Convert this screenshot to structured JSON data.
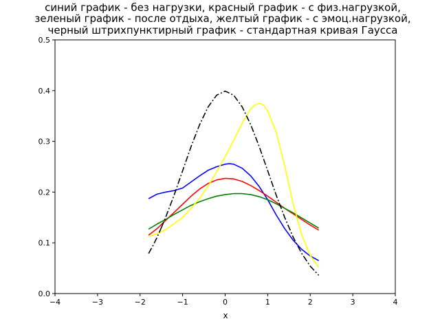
{
  "chart_data": {
    "type": "line",
    "title_lines": [
      "синий график - без нагрузки, красный график - с физ.нагрузкой,",
      "зеленый график - после отдыха, желтый график - с эмоц.нагрузкой,",
      "черный штрихпунктирный график - стандартная кривая Гаусса"
    ],
    "xlabel": "x",
    "ylabel": "",
    "xlim": [
      -4,
      4
    ],
    "ylim": [
      0,
      0.5
    ],
    "xticks": [
      -4,
      -3,
      -2,
      -1,
      0,
      1,
      2,
      3,
      4
    ],
    "yticks": [
      0.0,
      0.1,
      0.2,
      0.3,
      0.4,
      0.5
    ],
    "xtick_labels": [
      "−4",
      "−3",
      "−2",
      "−1",
      "0",
      "1",
      "2",
      "3",
      "4"
    ],
    "ytick_labels": [
      "0.0",
      "0.1",
      "0.2",
      "0.3",
      "0.4",
      "0.5"
    ],
    "grid": false,
    "series": [
      {
        "color": "#0000ff",
        "style": "solid",
        "x": [
          -1.8,
          -1.6,
          -1.4,
          -1.2,
          -1.0,
          -0.8,
          -0.6,
          -0.4,
          -0.2,
          0.0,
          0.1,
          0.2,
          0.4,
          0.6,
          0.8,
          1.0,
          1.2,
          1.4,
          1.6,
          1.8,
          2.0,
          2.2
        ],
        "y": [
          0.187,
          0.196,
          0.2,
          0.203,
          0.208,
          0.22,
          0.232,
          0.243,
          0.25,
          0.255,
          0.256,
          0.255,
          0.247,
          0.232,
          0.211,
          0.185,
          0.155,
          0.128,
          0.105,
          0.087,
          0.074,
          0.065
        ]
      },
      {
        "color": "#ff0000",
        "style": "solid",
        "x": [
          -1.8,
          -1.6,
          -1.4,
          -1.2,
          -1.0,
          -0.8,
          -0.6,
          -0.4,
          -0.2,
          0.0,
          0.2,
          0.4,
          0.6,
          0.8,
          1.0,
          1.2,
          1.4,
          1.6,
          1.8,
          2.0,
          2.2
        ],
        "y": [
          0.115,
          0.128,
          0.144,
          0.16,
          0.176,
          0.192,
          0.206,
          0.217,
          0.224,
          0.227,
          0.226,
          0.221,
          0.213,
          0.203,
          0.192,
          0.18,
          0.168,
          0.157,
          0.146,
          0.135,
          0.125
        ]
      },
      {
        "color": "#008000",
        "style": "solid",
        "x": [
          -1.8,
          -1.6,
          -1.4,
          -1.2,
          -1.0,
          -0.8,
          -0.6,
          -0.4,
          -0.2,
          0.0,
          0.2,
          0.4,
          0.6,
          0.8,
          1.0,
          1.2,
          1.4,
          1.6,
          1.8,
          2.0,
          2.2
        ],
        "y": [
          0.127,
          0.137,
          0.146,
          0.156,
          0.165,
          0.174,
          0.181,
          0.187,
          0.192,
          0.195,
          0.197,
          0.197,
          0.195,
          0.191,
          0.185,
          0.177,
          0.168,
          0.159,
          0.149,
          0.139,
          0.129
        ]
      },
      {
        "color": "#ffff00",
        "style": "solid",
        "x": [
          -1.8,
          -1.6,
          -1.4,
          -1.2,
          -1.0,
          -0.8,
          -0.6,
          -0.4,
          -0.2,
          0.0,
          0.2,
          0.4,
          0.6,
          0.7,
          0.8,
          0.9,
          1.0,
          1.2,
          1.4,
          1.6,
          1.8,
          2.0,
          2.2
        ],
        "y": [
          0.112,
          0.118,
          0.126,
          0.138,
          0.15,
          0.168,
          0.188,
          0.212,
          0.24,
          0.27,
          0.302,
          0.336,
          0.364,
          0.372,
          0.375,
          0.372,
          0.36,
          0.318,
          0.252,
          0.176,
          0.116,
          0.075,
          0.052
        ]
      },
      {
        "color": "#000000",
        "style": "dashdot",
        "x": [
          -1.5,
          -1.4,
          -1.2,
          -1.0,
          -0.8,
          -0.6,
          -0.4,
          -0.2,
          0.0,
          0.2,
          0.4,
          0.6,
          0.8,
          1.0,
          1.2,
          1.4,
          1.6,
          1.8,
          2.0,
          2.2
        ],
        "y": [
          0.13,
          0.15,
          0.194,
          0.242,
          0.29,
          0.333,
          0.368,
          0.391,
          0.399,
          0.391,
          0.368,
          0.333,
          0.29,
          0.242,
          0.194,
          0.15,
          0.111,
          0.079,
          0.054,
          0.036
        ]
      },
      {
        "color": "#000000",
        "style": "dashdot",
        "x": [
          -1.8,
          -1.7,
          -1.6,
          -1.5
        ],
        "y": [
          0.079,
          0.094,
          0.111,
          0.13
        ]
      }
    ]
  }
}
